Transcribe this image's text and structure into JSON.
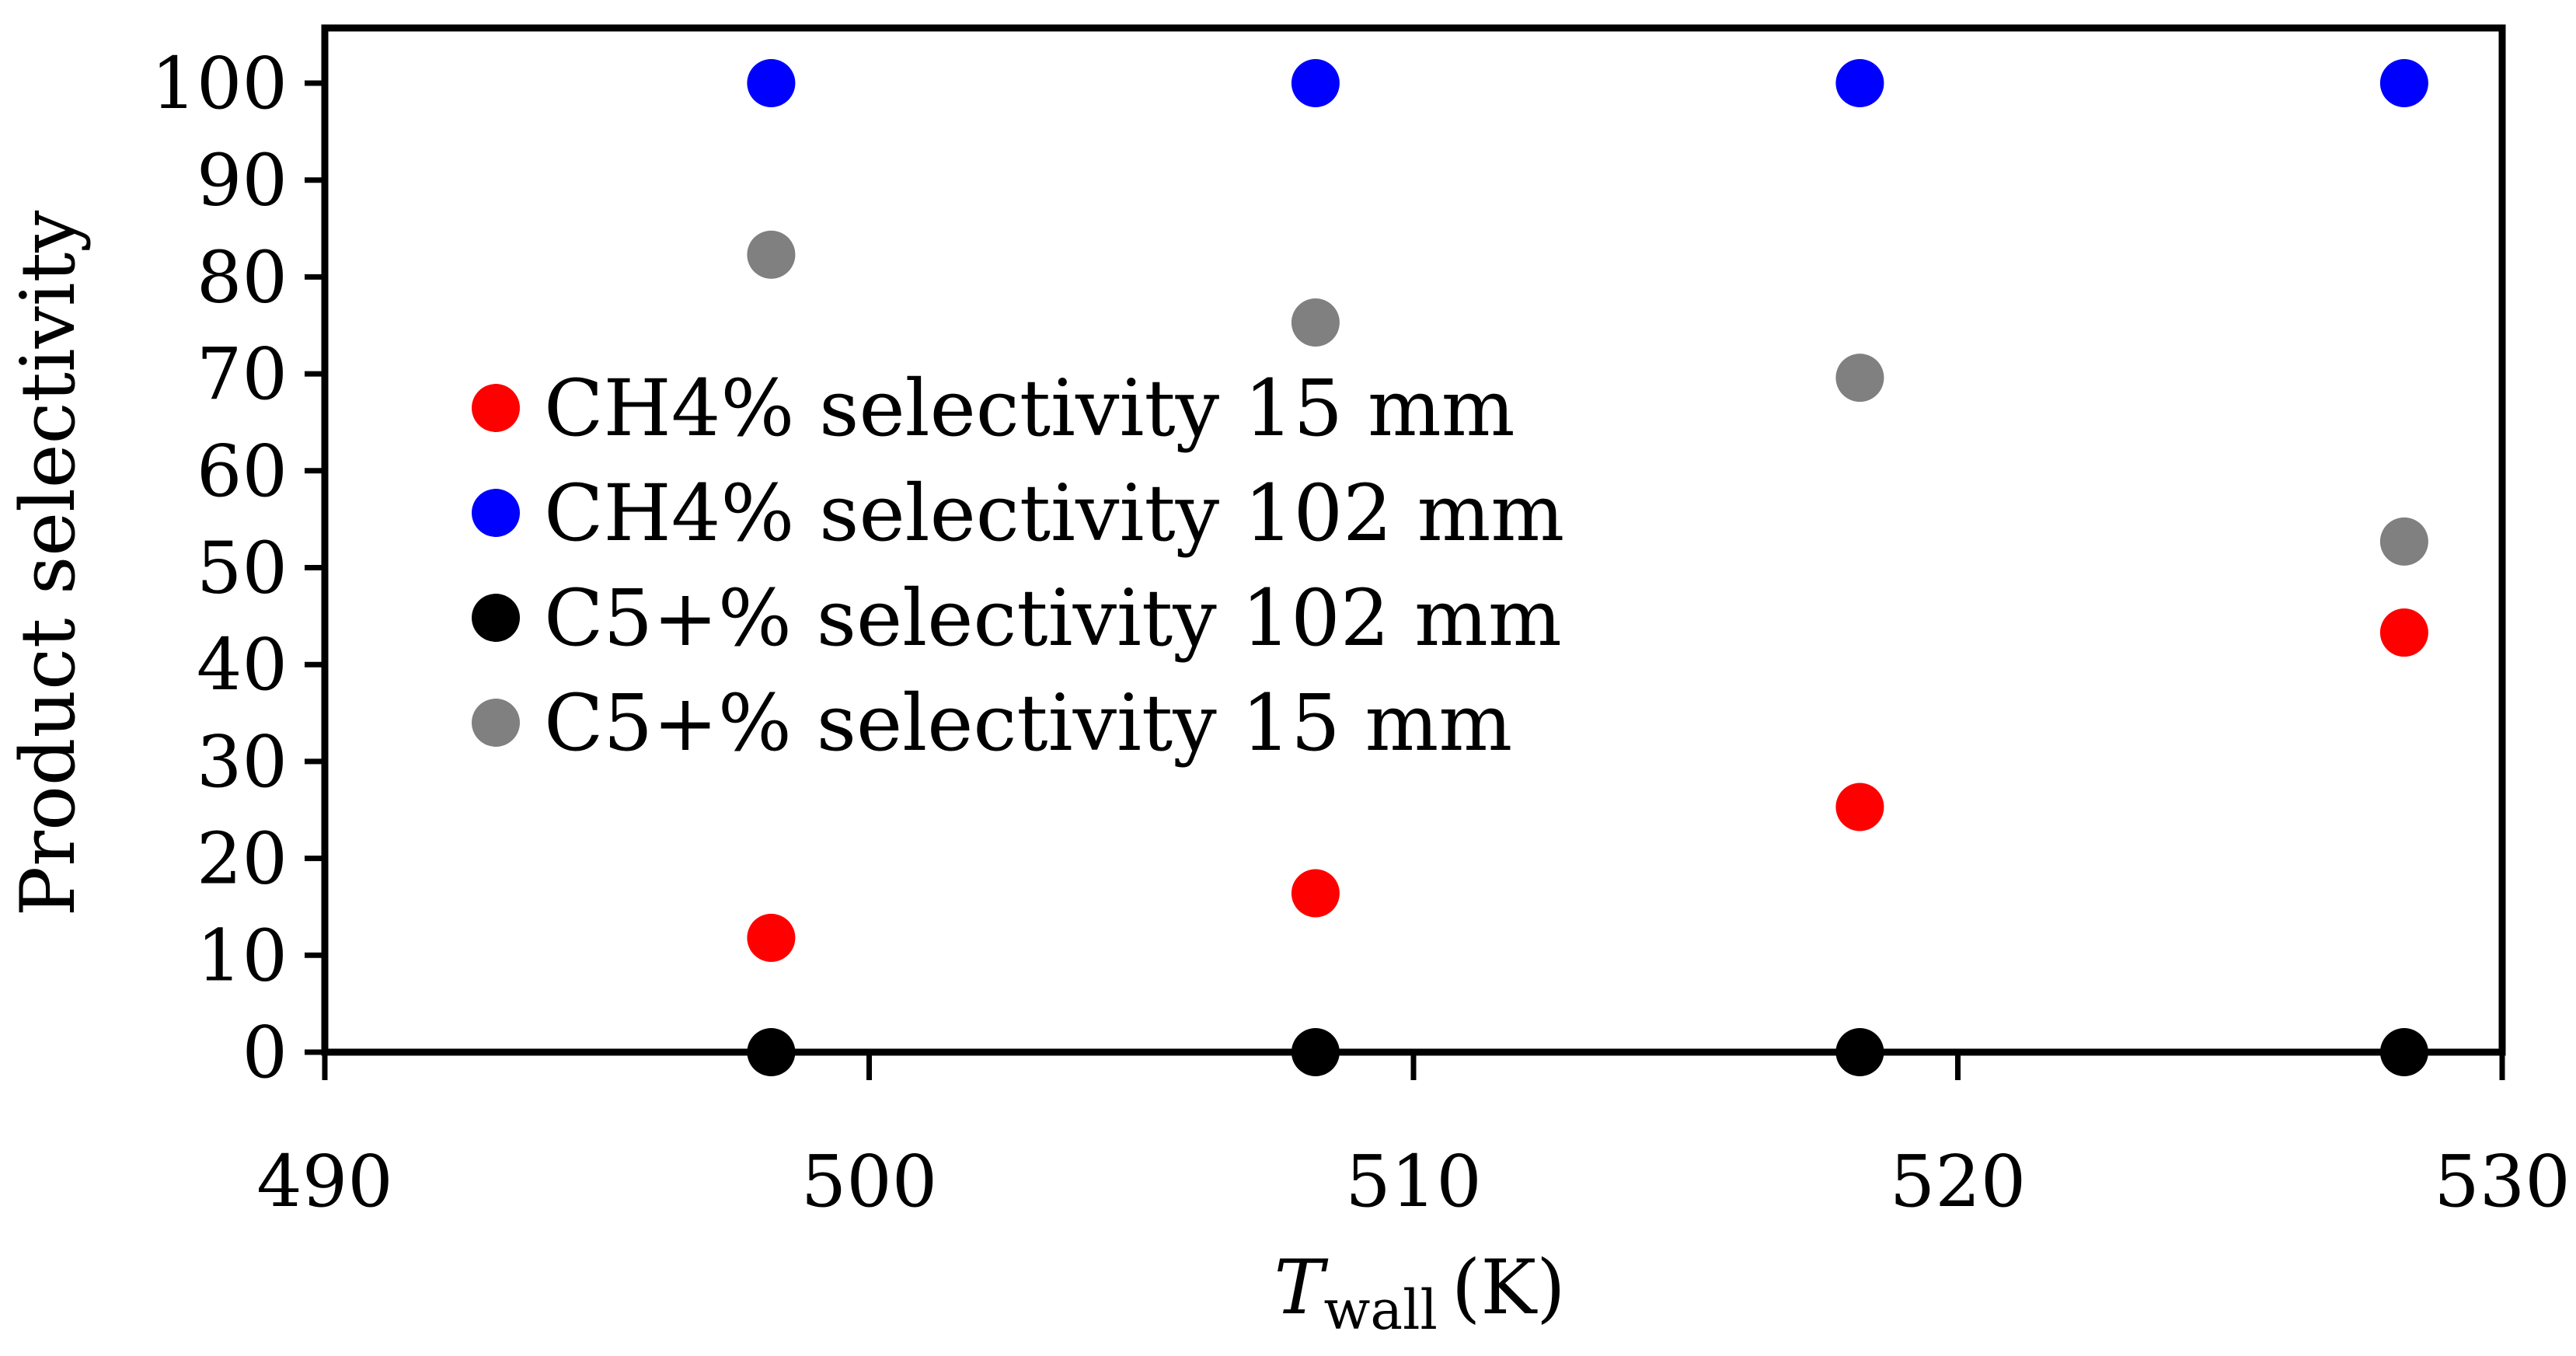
{
  "chart_data": {
    "type": "scatter",
    "title": "",
    "xlabel_main": "T",
    "xlabel_sub": "wall",
    "xlabel_unit": "(K)",
    "ylabel": "Product selectivity",
    "xlim": [
      490,
      530
    ],
    "ylim": [
      0,
      100
    ],
    "xticks": [
      490,
      500,
      510,
      520,
      530
    ],
    "yticks": [
      0,
      10,
      20,
      30,
      40,
      50,
      60,
      70,
      80,
      90,
      100
    ],
    "grid": false,
    "legend_position": "center-left",
    "series": [
      {
        "name": "CH4% selectivity 15 mm",
        "color": "#ff0000",
        "x": [
          498.2,
          508.2,
          518.2,
          528.2
        ],
        "y": [
          11.8,
          16.4,
          25.3,
          43.3
        ]
      },
      {
        "name": "CH4% selectivity 102 mm",
        "color": "#0000ff",
        "x": [
          498.2,
          508.2,
          518.2,
          528.2
        ],
        "y": [
          100,
          100,
          100,
          100
        ]
      },
      {
        "name": "C5+% selectivity 102 mm",
        "color": "#000000",
        "x": [
          498.2,
          508.2,
          518.2,
          528.2
        ],
        "y": [
          0,
          0,
          0,
          0
        ]
      },
      {
        "name": "C5+% selectivity 15 mm",
        "color": "#808080",
        "x": [
          498.2,
          508.2,
          518.2,
          528.2
        ],
        "y": [
          82.3,
          75.3,
          69.6,
          52.7
        ]
      }
    ]
  }
}
